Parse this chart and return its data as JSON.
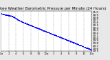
{
  "title": "Milwaukee Weather Barometric Pressure per Minute (24 Hours)",
  "title_fontsize": 4,
  "bg_color": "#e8e8e8",
  "plot_bg_color": "#ffffff",
  "dot_color": "#0000ff",
  "dot_size": 0.8,
  "grid_color": "#999999",
  "grid_style": "--",
  "ylim_min": 29.5,
  "ylim_max": 31.05,
  "xlim_min": 0,
  "xlim_max": 1440,
  "ytick_fontsize": 3.0,
  "xtick_fontsize": 2.8,
  "num_points": 1440,
  "pressure_start": 30.95,
  "pressure_end": 29.55,
  "noise_scale": 0.008,
  "vgrid_interval": 120,
  "yticks": [
    29.5,
    29.6,
    29.7,
    29.8,
    29.9,
    30.0,
    30.1,
    30.2,
    30.3,
    30.4,
    30.5,
    30.6,
    30.7,
    30.8,
    30.9,
    31.0
  ],
  "xtick_hours": [
    0,
    2,
    4,
    6,
    8,
    10,
    12,
    14,
    16,
    18,
    20,
    22,
    24
  ],
  "xtick_labels": [
    "12a",
    "2",
    "4",
    "6",
    "8",
    "10",
    "12p",
    "2",
    "4",
    "6",
    "8",
    "10",
    "12a"
  ]
}
